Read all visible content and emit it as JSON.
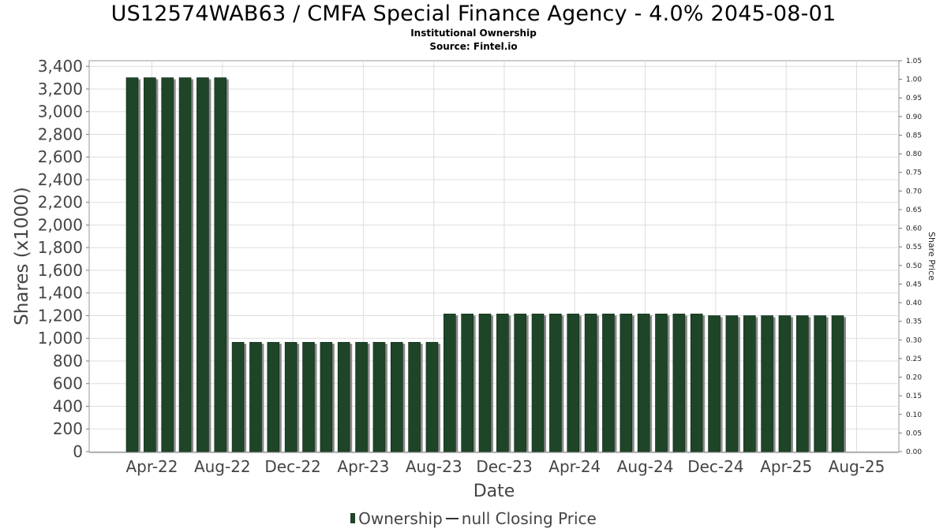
{
  "header": {
    "title": "US12574WAB63 / CMFA Special Finance Agency - 4.0% 2045-08-01",
    "subtitle": "Institutional Ownership",
    "source": "Source: Fintel.io"
  },
  "legend": {
    "ownership_label": "Ownership",
    "price_label": "null Closing Price"
  },
  "colors": {
    "bar": "#1e4528",
    "bar_shadow": "#8a8a8a",
    "grid": "#dddddd",
    "axis_text": "#444444"
  },
  "chart_data": {
    "type": "bar",
    "xlabel": "Date",
    "ylabel": "Shares (x1000)",
    "y2label": "Share Price",
    "ylim": [
      0,
      3450
    ],
    "y2lim": [
      0,
      1.05
    ],
    "yticks": [
      "0",
      "200",
      "400",
      "600",
      "800",
      "1,000",
      "1,200",
      "1,400",
      "1,600",
      "1,800",
      "2,000",
      "2,200",
      "2,400",
      "2,600",
      "2,800",
      "3,000",
      "3,200",
      "3,400"
    ],
    "y2ticks": [
      "0.00",
      "0.05",
      "0.10",
      "0.15",
      "0.20",
      "0.25",
      "0.30",
      "0.35",
      "0.40",
      "0.45",
      "0.50",
      "0.55",
      "0.60",
      "0.65",
      "0.70",
      "0.75",
      "0.80",
      "0.85",
      "0.90",
      "0.95",
      "1.00",
      "1.05"
    ],
    "xticks": [
      "Apr-22",
      "Aug-22",
      "Dec-22",
      "Apr-23",
      "Aug-23",
      "Dec-23",
      "Apr-24",
      "Aug-24",
      "Dec-24",
      "Apr-25",
      "Aug-25"
    ],
    "grid": true,
    "legend_position": "bottom",
    "series": [
      {
        "name": "Ownership",
        "values": [
          3300,
          3300,
          3300,
          3300,
          3300,
          3300,
          965,
          965,
          965,
          965,
          965,
          965,
          965,
          965,
          965,
          965,
          965,
          965,
          1215,
          1215,
          1215,
          1215,
          1215,
          1215,
          1215,
          1215,
          1215,
          1215,
          1215,
          1215,
          1215,
          1215,
          1215,
          1200,
          1200,
          1200,
          1200,
          1200,
          1200,
          1200,
          1200
        ]
      }
    ]
  }
}
